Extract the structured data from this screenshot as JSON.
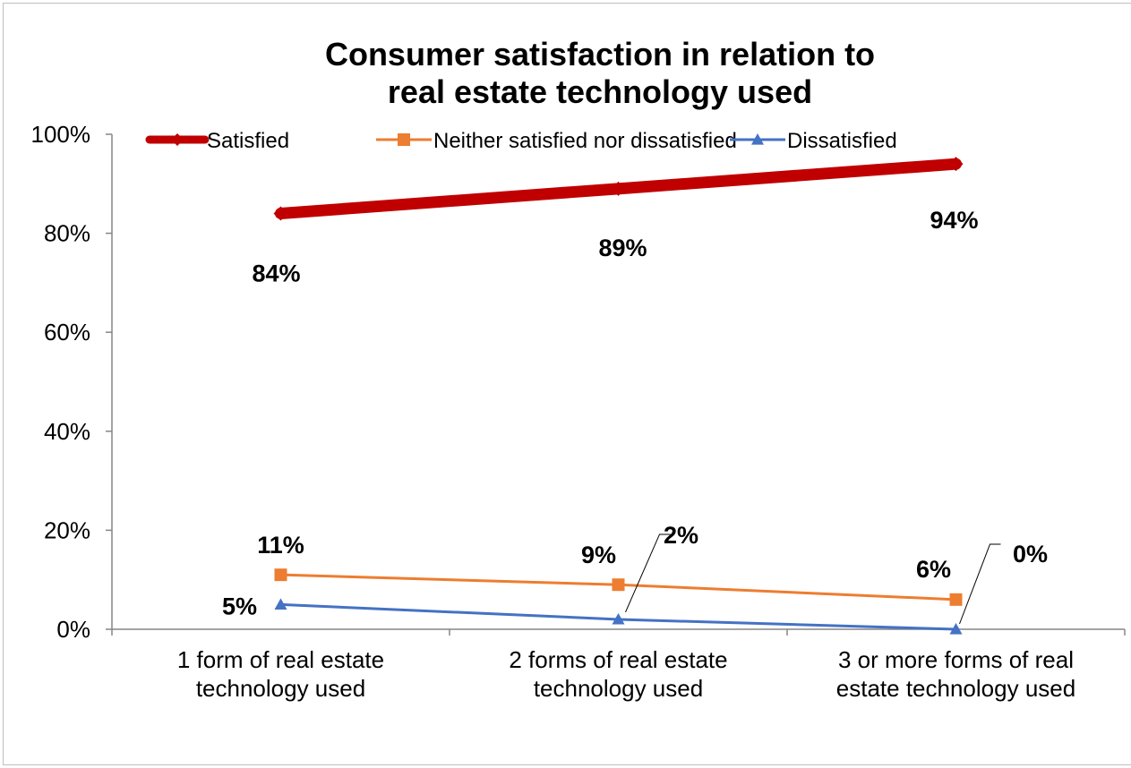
{
  "chart_data": {
    "type": "line",
    "title_lines": [
      "Consumer satisfaction in relation to",
      "real estate technology used"
    ],
    "categories": [
      [
        "1 form of real estate",
        "technology used"
      ],
      [
        "2 forms of real estate",
        "technology used"
      ],
      [
        "3 or more forms of real",
        "estate technology used"
      ]
    ],
    "ylim": [
      0,
      100
    ],
    "yticks": [
      0,
      20,
      40,
      60,
      80,
      100
    ],
    "ytick_labels": [
      "0%",
      "20%",
      "40%",
      "60%",
      "80%",
      "100%"
    ],
    "grid": false,
    "legend_position": "top",
    "series": [
      {
        "name": "Satisfied",
        "values": [
          84,
          89,
          94
        ],
        "labels": [
          "84%",
          "89%",
          "94%"
        ],
        "color": "#c00000",
        "marker": "diamond"
      },
      {
        "name": "Neither satisfied nor dissatisfied",
        "values": [
          11,
          9,
          6
        ],
        "labels": [
          "11%",
          "9%",
          "6%"
        ],
        "color": "#ed7d31",
        "marker": "square"
      },
      {
        "name": "Dissatisfied",
        "values": [
          5,
          2,
          0
        ],
        "labels": [
          "5%",
          "2%",
          "0%"
        ],
        "color": "#4472c4",
        "marker": "triangle"
      }
    ]
  }
}
